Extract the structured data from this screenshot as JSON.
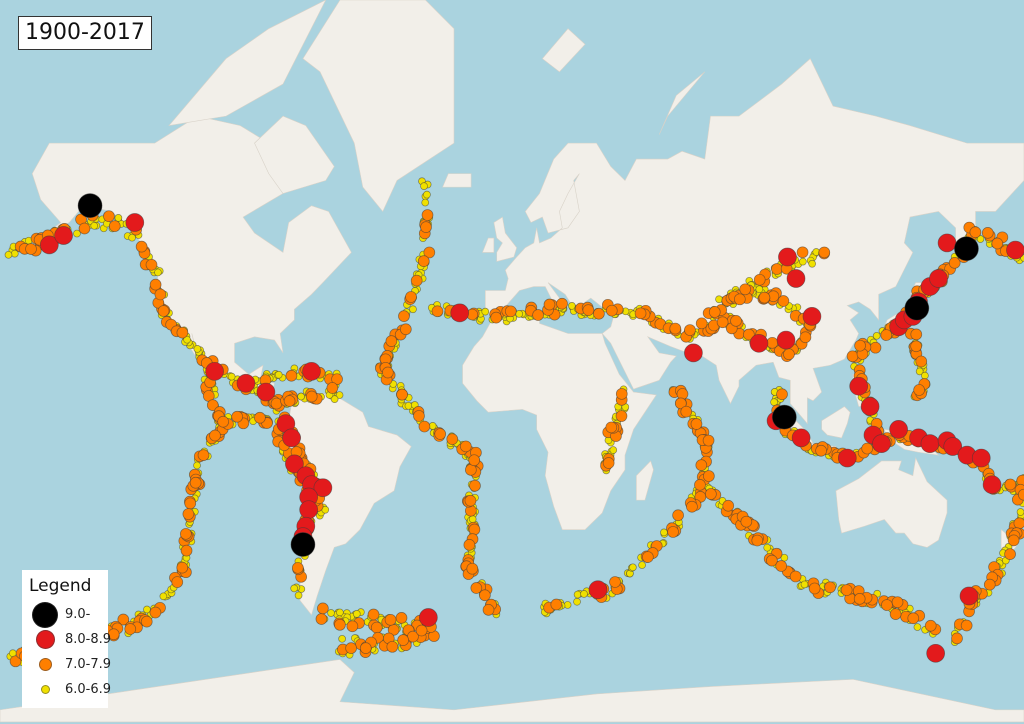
{
  "title": "1900-2017",
  "map": {
    "ocean_color": "#aad3df",
    "land_color": "#f2efe9",
    "projection": "mercator"
  },
  "legend": {
    "title": "Legend",
    "items": [
      {
        "label": "9.0-",
        "color": "#000000",
        "class": "m9"
      },
      {
        "label": "8.0-8.9",
        "color": "#e31a1c",
        "class": "m8"
      },
      {
        "label": "7.0-7.9",
        "color": "#ff7f00",
        "class": "m7"
      },
      {
        "label": "6.0-6.9",
        "color": "#f0e000",
        "class": "m6"
      }
    ]
  },
  "quakes": {
    "m9": [
      [
        -147.7,
        61.0
      ],
      [
        -73.0,
        -38.2
      ],
      [
        95.9,
        3.3
      ],
      [
        142.4,
        38.3
      ],
      [
        159.8,
        52.8
      ]
    ],
    "m8": [
      [
        -162,
        53.6
      ],
      [
        -157,
        55.5
      ],
      [
        -132,
        58
      ],
      [
        -104,
        19
      ],
      [
        -93,
        15
      ],
      [
        -86,
        12
      ],
      [
        -70,
        19
      ],
      [
        -79,
        1
      ],
      [
        -77,
        -4
      ],
      [
        -76,
        -13
      ],
      [
        -72,
        -17
      ],
      [
        -70,
        -20
      ],
      [
        -66,
        -21
      ],
      [
        -71,
        -24
      ],
      [
        -71,
        -28
      ],
      [
        -72,
        -33
      ],
      [
        -73,
        -36
      ],
      [
        -18,
        37
      ],
      [
        -29,
        -55.5
      ],
      [
        30.5,
        -49.6
      ],
      [
        64,
        25
      ],
      [
        87,
        28
      ],
      [
        96.5,
        29
      ],
      [
        97,
        51
      ],
      [
        100,
        46
      ],
      [
        105.6,
        36
      ],
      [
        93,
        2
      ],
      [
        101.8,
        -4
      ],
      [
        118,
        -11
      ],
      [
        122,
        14
      ],
      [
        126,
        7
      ],
      [
        127,
        -3
      ],
      [
        130,
        -6
      ],
      [
        136,
        -1
      ],
      [
        143,
        -4
      ],
      [
        147,
        -6
      ],
      [
        153,
        -5
      ],
      [
        155,
        -7
      ],
      [
        160,
        -10
      ],
      [
        165,
        -11
      ],
      [
        168.8,
        -20
      ],
      [
        147,
        44
      ],
      [
        150,
        46
      ],
      [
        143,
        40
      ],
      [
        136,
        33
      ],
      [
        138,
        35
      ],
      [
        141,
        36
      ],
      [
        153,
        54
      ],
      [
        177,
        52.5
      ],
      [
        160.7,
        -51
      ],
      [
        149,
        -62
      ]
    ]
  }
}
